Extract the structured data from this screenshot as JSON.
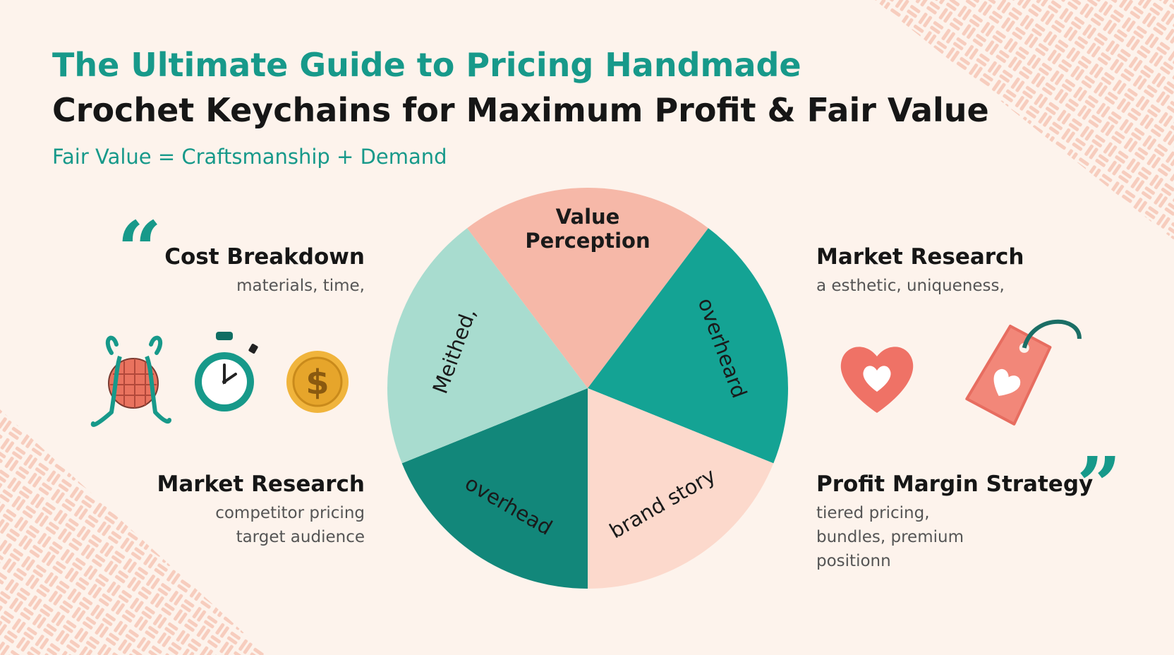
{
  "header": {
    "title_line1": "The Ultimate Guide to Pricing Handmade",
    "title_line2": "Crochet Keychains for Maximum Profit & Fair Value",
    "subtitle": "Fair Value = Craftsmanship + Demand"
  },
  "left_top": {
    "title": "Cost Breakdown",
    "lines": [
      "materials, time,"
    ]
  },
  "left_bottom": {
    "title": "Market Research",
    "lines": [
      "competitor pricing",
      "target audience"
    ]
  },
  "right_top": {
    "title": "Market Research",
    "lines": [
      "a esthetic, uniqueness,"
    ]
  },
  "right_bottom": {
    "title": "Profit Margin Strategy",
    "lines": [
      "tiered pricing,",
      "bundles, premium",
      "positionn"
    ]
  },
  "pie": {
    "segments": [
      {
        "lines": [
          "Value",
          "Perception"
        ]
      },
      {
        "lines": [
          "overheard"
        ]
      },
      {
        "lines": [
          "brand story"
        ]
      },
      {
        "lines": [
          "overhead"
        ]
      },
      {
        "lines": [
          "Meithed,"
        ]
      }
    ]
  }
}
